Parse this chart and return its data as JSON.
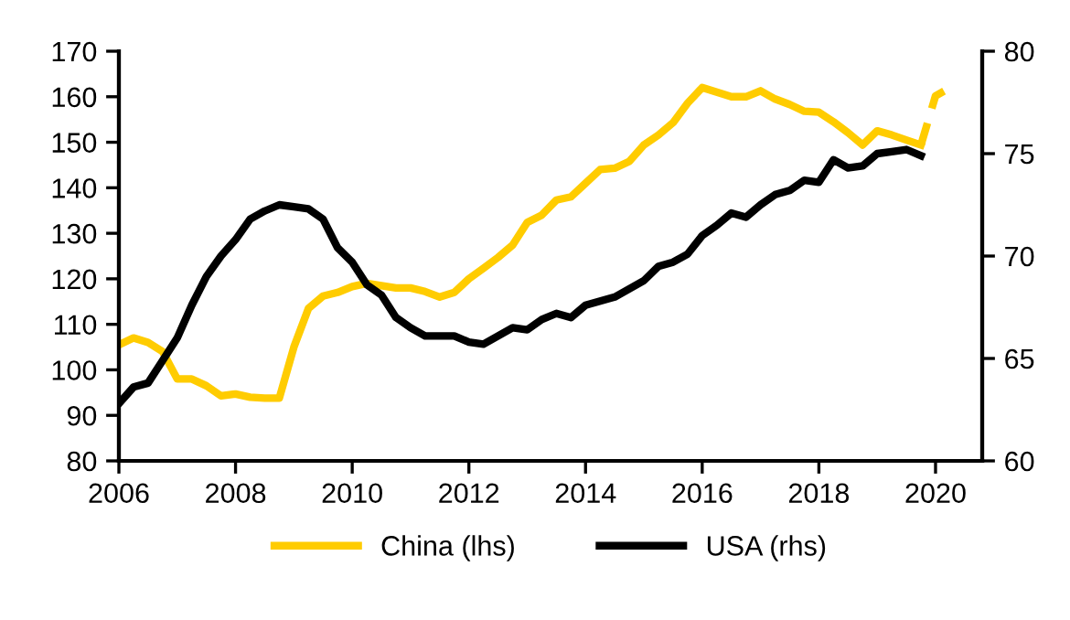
{
  "chart_data": {
    "type": "line",
    "xlim": [
      2006,
      2020.8
    ],
    "xticks": [
      2006,
      2008,
      2010,
      2012,
      2014,
      2016,
      2018,
      2020
    ],
    "ylim": [
      80,
      170
    ],
    "yticks": [
      80,
      90,
      100,
      110,
      120,
      130,
      140,
      150,
      160,
      170
    ],
    "y2lim": [
      60,
      80
    ],
    "y2ticks": [
      60,
      65,
      70,
      75,
      80
    ],
    "grid": false,
    "legend": "bottom",
    "marker": "none",
    "series": [
      {
        "name": "China (lhs)",
        "color": "#ffcc00",
        "line_style": "solid",
        "x": [
          2006,
          2006.25,
          2006.5,
          2006.75,
          2007,
          2007.25,
          2007.5,
          2007.75,
          2008,
          2008.25,
          2008.5,
          2008.75,
          2009,
          2009.25,
          2009.5,
          2009.75,
          2010,
          2010.25,
          2010.5,
          2010.75,
          2011,
          2011.25,
          2011.5,
          2011.75,
          2012,
          2012.25,
          2012.5,
          2012.75,
          2013,
          2013.25,
          2013.5,
          2013.75,
          2014,
          2014.25,
          2014.5,
          2014.75,
          2015,
          2015.25,
          2015.5,
          2015.75,
          2016,
          2016.25,
          2016.5,
          2016.75,
          2017,
          2017.25,
          2017.5,
          2017.75,
          2018,
          2018.25,
          2018.5,
          2018.75,
          2019,
          2019.25,
          2019.5,
          2019.75
        ],
        "values": [
          105.5,
          107,
          106,
          104,
          98,
          98,
          96.5,
          94.3,
          94.7,
          94,
          93.8,
          93.8,
          105,
          113.5,
          116.2,
          117,
          118.3,
          119,
          118.5,
          118,
          118,
          117.2,
          116,
          117,
          120,
          122.3,
          124.7,
          127.4,
          132.4,
          134,
          137.3,
          138,
          141,
          144,
          144.3,
          145.8,
          149.4,
          151.6,
          154.3,
          158.6,
          162,
          161,
          160,
          160,
          161.3,
          159.5,
          158.3,
          156.8,
          156.6,
          154.5,
          152.1,
          149.4,
          152.5,
          151.6,
          150.5,
          149.4
        ]
      },
      {
        "color": "#ffcc00",
        "line_style": "dashed",
        "x": [
          2019.75,
          2020,
          2020.25
        ],
        "values": [
          149.4,
          160.2,
          162
        ]
      },
      {
        "name": "USA (rhs)",
        "color": "#000000",
        "line_style": "solid",
        "axis": "y2",
        "x": [
          2006,
          2006.25,
          2006.5,
          2006.75,
          2007,
          2007.25,
          2007.5,
          2007.75,
          2008,
          2008.25,
          2008.5,
          2008.75,
          2009,
          2009.25,
          2009.5,
          2009.75,
          2010,
          2010.25,
          2010.5,
          2010.75,
          2011,
          2011.25,
          2011.5,
          2011.75,
          2012,
          2012.25,
          2012.5,
          2012.75,
          2013,
          2013.25,
          2013.5,
          2013.75,
          2014,
          2014.25,
          2014.5,
          2014.75,
          2015,
          2015.25,
          2015.5,
          2015.75,
          2016,
          2016.25,
          2016.5,
          2016.75,
          2017,
          2017.25,
          2017.5,
          2017.75,
          2018,
          2018.25,
          2018.5,
          2018.75,
          2019,
          2019.25,
          2019.5,
          2019.75
        ],
        "values": [
          62.8,
          63.6,
          63.8,
          64.9,
          66,
          67.6,
          69,
          70,
          70.8,
          71.8,
          72.2,
          72.5,
          72.4,
          72.3,
          71.8,
          70.4,
          69.7,
          68.6,
          68.1,
          67,
          66.5,
          66.1,
          66.1,
          66.1,
          65.8,
          65.7,
          66.1,
          66.5,
          66.4,
          66.9,
          67.2,
          67,
          67.6,
          67.8,
          68,
          68.4,
          68.8,
          69.5,
          69.7,
          70.1,
          71,
          71.5,
          72.1,
          71.9,
          72.5,
          73,
          73.2,
          73.7,
          73.6,
          74.7,
          74.3,
          74.4,
          75,
          75.1,
          75.2,
          74.9
        ]
      }
    ]
  }
}
